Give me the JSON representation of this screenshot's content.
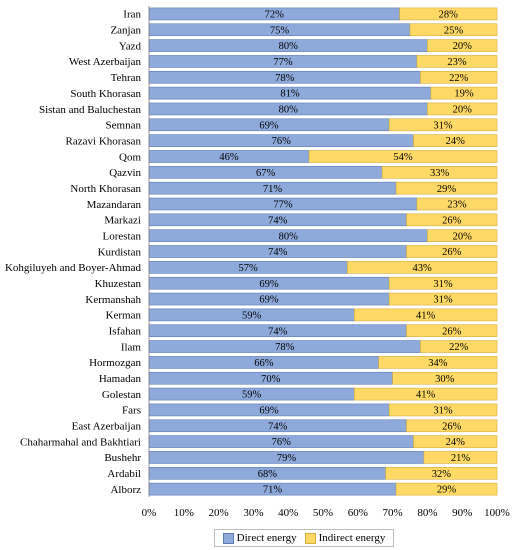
{
  "chart_data": {
    "type": "bar",
    "orientation": "horizontal",
    "stacked": true,
    "percent": true,
    "categories": [
      "Iran",
      "Zanjan",
      "Yazd",
      "West Azerbaijan",
      "Tehran",
      "South Khorasan",
      "Sistan and Baluchestan",
      "Semnan",
      "Razavi Khorasan",
      "Qom",
      "Qazvin",
      "North Khorasan",
      "Mazandaran",
      "Markazi",
      "Lorestan",
      "Kurdistan",
      "Kohgiluyeh and Boyer-Ahmad",
      "Khuzestan",
      "Kermanshah",
      "Kerman",
      "Isfahan",
      "Ilam",
      "Hormozgan",
      "Hamadan",
      "Golestan",
      "Fars",
      "East Azerbaijan",
      "Chaharmahal and Bakhtiari",
      "Bushehr",
      "Ardabil",
      "Alborz"
    ],
    "series": [
      {
        "name": "Direct energy",
        "color": "#8eaadb",
        "values": [
          72,
          75,
          80,
          77,
          78,
          81,
          80,
          69,
          76,
          46,
          67,
          71,
          77,
          74,
          80,
          74,
          57,
          69,
          69,
          59,
          74,
          78,
          66,
          70,
          59,
          69,
          74,
          76,
          79,
          68,
          71
        ],
        "labels": [
          "72%",
          "75%",
          "80%",
          "77%",
          "78%",
          "81%",
          "80%",
          "69%",
          "76%",
          "46%",
          "67%",
          "71%",
          "77%",
          "74%",
          "80%",
          "74%",
          "57%",
          "69%",
          "69%",
          "59%",
          "74%",
          "78%",
          "66%",
          "70%",
          "59%",
          "69%",
          "74%",
          "76%",
          "79%",
          "68%",
          "71%"
        ]
      },
      {
        "name": "Indirect energy",
        "color": "#ffd966",
        "values": [
          28,
          25,
          20,
          23,
          22,
          19,
          20,
          31,
          24,
          54,
          33,
          29,
          23,
          26,
          20,
          26,
          43,
          31,
          31,
          41,
          26,
          22,
          34,
          30,
          41,
          31,
          26,
          24,
          21,
          32,
          29
        ],
        "labels": [
          "28%",
          "25%",
          "20%",
          "23%",
          "22%",
          "19%",
          "20%",
          "31%",
          "24%",
          "54%",
          "33%",
          "29%",
          "23%",
          "26%",
          "20%",
          "26%",
          "43%",
          "31%",
          "31%",
          "41%",
          "26%",
          "22%",
          "34%",
          "30%",
          "41%",
          "31%",
          "26%",
          "24%",
          "21%",
          "32%",
          "29%"
        ]
      }
    ],
    "xlim": [
      0,
      100
    ],
    "xticks": [
      "0%",
      "10%",
      "20%",
      "30%",
      "40%",
      "50%",
      "60%",
      "70%",
      "80%",
      "90%",
      "100%"
    ],
    "title": "",
    "xlabel": "",
    "ylabel": "",
    "grid": false,
    "legend_position": "bottom"
  }
}
